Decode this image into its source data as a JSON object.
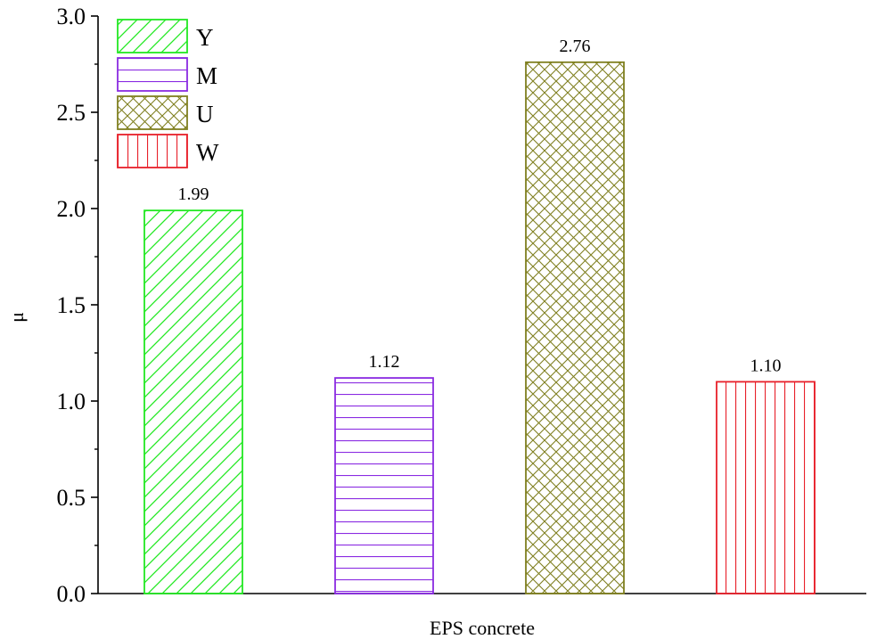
{
  "chart_data": {
    "type": "bar",
    "xlabel": "EPS concrete",
    "ylabel": "μ",
    "ylim": [
      0,
      3.0
    ],
    "yticks": [
      0.0,
      0.5,
      1.0,
      1.5,
      2.0,
      2.5,
      3.0
    ],
    "ytick_labels": [
      "0.0",
      "0.5",
      "1.0",
      "1.5",
      "2.0",
      "2.5",
      "3.0"
    ],
    "grid": false,
    "legend_position": "top-left",
    "series": [
      {
        "name": "Y",
        "value": 1.99,
        "label": "1.99",
        "color": "#22e822",
        "pattern": "diagonal"
      },
      {
        "name": "M",
        "value": 1.12,
        "label": "1.12",
        "color": "#8a2be2",
        "pattern": "horizontal"
      },
      {
        "name": "U",
        "value": 2.76,
        "label": "2.76",
        "color": "#808020",
        "pattern": "crosshatch"
      },
      {
        "name": "W",
        "value": 1.1,
        "label": "1.10",
        "color": "#e8202a",
        "pattern": "vertical"
      }
    ]
  }
}
